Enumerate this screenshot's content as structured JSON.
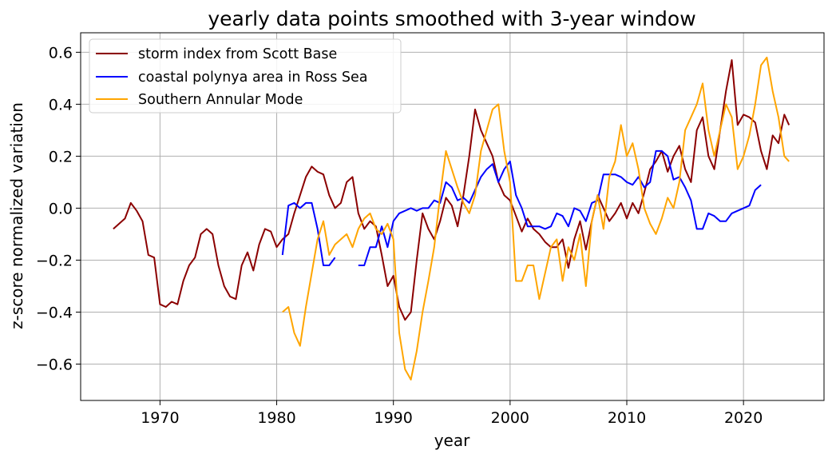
{
  "chart_data": {
    "type": "line",
    "title": "yearly data points smoothed with 3-year window",
    "xlabel": "year",
    "ylabel": "z-score normalized variation",
    "xlim": [
      1963.2,
      2026.9
    ],
    "ylim": [
      -0.74,
      0.675
    ],
    "xticks": [
      1970,
      1980,
      1990,
      2000,
      2010,
      2020
    ],
    "yticks": [
      -0.6,
      -0.4,
      -0.2,
      0.0,
      0.2,
      0.4,
      0.6
    ],
    "ytick_labels": [
      "−0.6",
      "−0.4",
      "−0.2",
      "0.0",
      "0.2",
      "0.4",
      "0.6"
    ],
    "grid": true,
    "legend_position": "top-left",
    "series": [
      {
        "name": "storm index from Scott Base",
        "color": "#8b0000",
        "x": [
          1966.0,
          1966.5,
          1967.0,
          1967.5,
          1968.0,
          1968.5,
          1969.0,
          1969.5,
          1970.0,
          1970.5,
          1971.0,
          1971.5,
          1972.0,
          1972.5,
          1973.0,
          1973.5,
          1974.0,
          1974.5,
          1975.0,
          1975.5,
          1976.0,
          1976.5,
          1977.0,
          1977.5,
          1978.0,
          1978.5,
          1979.0,
          1979.5,
          1980.0,
          1980.5,
          1981.0,
          1981.5,
          1982.0,
          1982.5,
          1983.0,
          1983.5,
          1984.0,
          1984.5,
          1985.0,
          1985.5,
          1986.0,
          1986.5,
          1987.0,
          1987.5,
          1988.0,
          1988.5,
          1989.0,
          1989.5,
          1990.0,
          1990.5,
          1991.0,
          1991.5,
          1992.0,
          1992.5,
          1993.0,
          1993.5,
          1994.0,
          1994.5,
          1995.0,
          1995.5,
          1996.0,
          1996.5,
          1997.0,
          1997.5,
          1998.0,
          1998.5,
          1999.0,
          1999.5,
          2000.0,
          2000.5,
          2001.0,
          2001.5,
          2002.0,
          2002.5,
          2003.0,
          2003.5,
          2004.0,
          2004.5,
          2005.0,
          2005.5,
          2006.0,
          2006.5,
          2007.0,
          2007.5,
          2008.0,
          2008.5,
          2009.0,
          2009.5,
          2010.0,
          2010.5,
          2011.0,
          2011.5,
          2012.0,
          2012.5,
          2013.0,
          2013.5,
          2014.0,
          2014.5,
          2015.0,
          2015.5,
          2016.0,
          2016.5,
          2017.0,
          2017.5,
          2018.0,
          2018.5,
          2019.0,
          2019.5,
          2020.0,
          2020.5,
          2021.0,
          2021.5,
          2022.0,
          2022.5,
          2023.0,
          2023.5,
          2023.9
        ],
        "y": [
          -0.08,
          -0.06,
          -0.04,
          0.02,
          -0.01,
          -0.05,
          -0.18,
          -0.19,
          -0.37,
          -0.38,
          -0.36,
          -0.37,
          -0.28,
          -0.22,
          -0.19,
          -0.1,
          -0.08,
          -0.1,
          -0.22,
          -0.3,
          -0.34,
          -0.35,
          -0.22,
          -0.17,
          -0.24,
          -0.14,
          -0.08,
          -0.09,
          -0.15,
          -0.12,
          -0.1,
          -0.02,
          0.05,
          0.12,
          0.16,
          0.14,
          0.13,
          0.05,
          0.0,
          0.02,
          0.1,
          0.12,
          -0.02,
          -0.08,
          -0.05,
          -0.07,
          -0.18,
          -0.3,
          -0.26,
          -0.38,
          -0.43,
          -0.4,
          -0.2,
          -0.02,
          -0.08,
          -0.12,
          -0.05,
          0.04,
          0.01,
          -0.07,
          0.05,
          0.2,
          0.38,
          0.3,
          0.25,
          0.2,
          0.1,
          0.05,
          0.03,
          -0.03,
          -0.09,
          -0.04,
          -0.08,
          -0.1,
          -0.13,
          -0.15,
          -0.15,
          -0.12,
          -0.23,
          -0.12,
          -0.05,
          -0.16,
          -0.05,
          0.05,
          0.0,
          -0.05,
          -0.02,
          0.02,
          -0.04,
          0.02,
          -0.02,
          0.06,
          0.15,
          0.18,
          0.22,
          0.14,
          0.2,
          0.24,
          0.15,
          0.1,
          0.3,
          0.35,
          0.2,
          0.15,
          0.3,
          0.45,
          0.57,
          0.32,
          0.36,
          0.35,
          0.33,
          0.22,
          0.15,
          0.28,
          0.25,
          0.36,
          0.32
        ]
      },
      {
        "name": "coastal polynya area in Ross Sea",
        "color": "#0000ff",
        "x": [
          1980.5,
          1981.0,
          1981.5,
          1982.0,
          1982.5,
          1983.0,
          1983.5,
          1984.0,
          1984.5,
          1985.0,
          null,
          1987.0,
          1987.5,
          1988.0,
          1988.5,
          1989.0,
          1989.5,
          1990.0,
          1990.5,
          1991.0,
          1991.5,
          1992.0,
          1992.5,
          1993.0,
          1993.5,
          1994.0,
          1994.5,
          1995.0,
          1995.5,
          1996.0,
          1996.5,
          1997.0,
          1997.5,
          1998.0,
          1998.5,
          1999.0,
          1999.5,
          2000.0,
          2000.5,
          2001.0,
          2001.5,
          2002.0,
          2002.5,
          2003.0,
          2003.5,
          2004.0,
          2004.5,
          2005.0,
          2005.5,
          2006.0,
          2006.5,
          2007.0,
          2007.5,
          2008.0,
          2008.5,
          2009.0,
          2009.5,
          2010.0,
          2010.5,
          2011.0,
          2011.5,
          2012.0,
          2012.5,
          2013.0,
          2013.5,
          2014.0,
          2014.5,
          2015.0,
          2015.5,
          2016.0,
          2016.5,
          2017.0,
          2017.5,
          2018.0,
          2018.5,
          2019.0,
          2019.5,
          2020.0,
          2020.5,
          2021.0,
          2021.5
        ],
        "y": [
          -0.18,
          0.01,
          0.02,
          0.0,
          0.02,
          0.02,
          -0.08,
          -0.22,
          -0.22,
          -0.19,
          null,
          -0.22,
          -0.22,
          -0.15,
          -0.15,
          -0.07,
          -0.15,
          -0.05,
          -0.02,
          -0.01,
          0.0,
          -0.01,
          0.0,
          0.0,
          0.03,
          0.02,
          0.1,
          0.08,
          0.03,
          0.04,
          0.02,
          0.07,
          0.12,
          0.15,
          0.17,
          0.1,
          0.15,
          0.18,
          0.05,
          0.0,
          -0.07,
          -0.07,
          -0.07,
          -0.08,
          -0.07,
          -0.02,
          -0.03,
          -0.07,
          0.0,
          -0.01,
          -0.05,
          0.02,
          0.03,
          0.13,
          0.13,
          0.13,
          0.12,
          0.1,
          0.09,
          0.12,
          0.08,
          0.1,
          0.22,
          0.22,
          0.2,
          0.11,
          0.12,
          0.08,
          0.03,
          -0.08,
          -0.08,
          -0.02,
          -0.03,
          -0.05,
          -0.05,
          -0.02,
          -0.01,
          0.0,
          0.01,
          0.07,
          0.09
        ]
      },
      {
        "name": "Southern Annular Mode",
        "color": "#ffa500",
        "x": [
          1980.5,
          1981.0,
          1981.5,
          1982.0,
          1982.5,
          1983.0,
          1983.5,
          1984.0,
          1984.5,
          1985.0,
          1985.5,
          1986.0,
          1986.5,
          1987.0,
          1987.5,
          1988.0,
          1988.5,
          1989.0,
          1989.5,
          1990.0,
          1990.5,
          1991.0,
          1991.5,
          1992.0,
          1992.5,
          1993.0,
          1993.5,
          1994.0,
          1994.5,
          1995.0,
          1995.5,
          1996.0,
          1996.5,
          1997.0,
          1997.5,
          1998.0,
          1998.5,
          1999.0,
          1999.5,
          2000.0,
          2000.5,
          2001.0,
          2001.5,
          2002.0,
          2002.5,
          2003.0,
          2003.5,
          2004.0,
          2004.5,
          2005.0,
          2005.5,
          2006.0,
          2006.5,
          2007.0,
          2007.5,
          2008.0,
          2008.5,
          2009.0,
          2009.5,
          2010.0,
          2010.5,
          2011.0,
          2011.5,
          2012.0,
          2012.5,
          2013.0,
          2013.5,
          2014.0,
          2014.5,
          2015.0,
          2015.5,
          2016.0,
          2016.5,
          2017.0,
          2017.5,
          2018.0,
          2018.5,
          2019.0,
          2019.5,
          2020.0,
          2020.5,
          2021.0,
          2021.5,
          2022.0,
          2022.5,
          2023.0,
          2023.5,
          2023.9
        ],
        "y": [
          -0.4,
          -0.38,
          -0.48,
          -0.53,
          -0.38,
          -0.25,
          -0.12,
          -0.05,
          -0.18,
          -0.14,
          -0.12,
          -0.1,
          -0.15,
          -0.08,
          -0.04,
          -0.02,
          -0.08,
          -0.1,
          -0.06,
          -0.12,
          -0.48,
          -0.62,
          -0.66,
          -0.55,
          -0.4,
          -0.28,
          -0.15,
          0.05,
          0.22,
          0.15,
          0.08,
          0.02,
          -0.02,
          0.05,
          0.22,
          0.3,
          0.38,
          0.4,
          0.22,
          0.1,
          -0.28,
          -0.28,
          -0.22,
          -0.22,
          -0.35,
          -0.25,
          -0.15,
          -0.12,
          -0.28,
          -0.15,
          -0.2,
          -0.1,
          -0.3,
          -0.05,
          0.05,
          -0.08,
          0.12,
          0.18,
          0.32,
          0.2,
          0.25,
          0.15,
          0.0,
          -0.06,
          -0.1,
          -0.04,
          0.04,
          0.0,
          0.1,
          0.3,
          0.35,
          0.4,
          0.48,
          0.3,
          0.2,
          0.3,
          0.4,
          0.35,
          0.15,
          0.2,
          0.28,
          0.4,
          0.55,
          0.58,
          0.45,
          0.35,
          0.2,
          0.18
        ]
      }
    ]
  }
}
